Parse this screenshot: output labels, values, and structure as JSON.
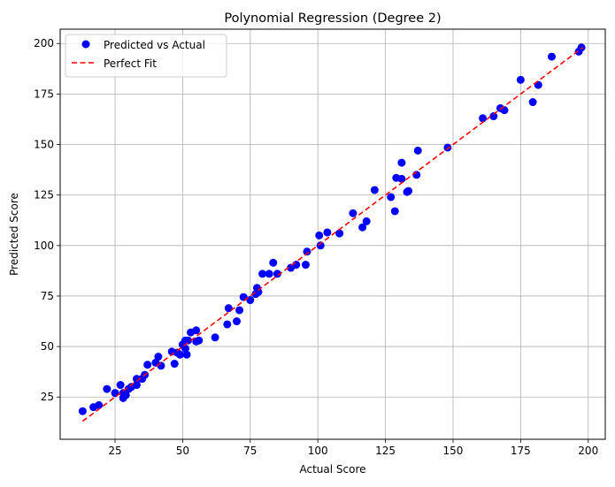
{
  "chart_data": {
    "type": "scatter",
    "title": "Polynomial Regression (Degree 2)",
    "xlabel": "Actual Score",
    "ylabel": "Predicted Score",
    "xlim": [
      4.7,
      206.3
    ],
    "ylim": [
      4.1,
      207.1
    ],
    "xticks": [
      25,
      50,
      75,
      100,
      125,
      150,
      175,
      200
    ],
    "yticks": [
      25,
      50,
      75,
      100,
      125,
      150,
      175,
      200
    ],
    "grid": true,
    "legend_position": "upper-left",
    "series": [
      {
        "name": "Predicted vs Actual",
        "kind": "scatter",
        "color": "#0000ff",
        "points": [
          [
            13,
            18
          ],
          [
            17,
            20
          ],
          [
            19,
            21
          ],
          [
            22,
            29
          ],
          [
            25,
            27
          ],
          [
            27,
            31
          ],
          [
            28,
            27
          ],
          [
            28,
            24.5
          ],
          [
            29,
            26
          ],
          [
            30,
            29
          ],
          [
            31,
            30
          ],
          [
            33,
            31
          ],
          [
            33,
            34
          ],
          [
            35,
            34
          ],
          [
            36,
            36
          ],
          [
            37,
            41
          ],
          [
            40,
            42
          ],
          [
            41,
            45
          ],
          [
            42,
            40.5
          ],
          [
            46,
            47.5
          ],
          [
            47,
            41.5
          ],
          [
            48,
            47
          ],
          [
            49,
            46
          ],
          [
            50,
            51
          ],
          [
            51,
            53
          ],
          [
            51,
            49
          ],
          [
            51.5,
            46
          ],
          [
            52,
            53
          ],
          [
            53,
            57
          ],
          [
            55,
            58
          ],
          [
            55,
            52.5
          ],
          [
            56,
            53
          ],
          [
            62,
            54.5
          ],
          [
            66.5,
            61
          ],
          [
            67,
            69
          ],
          [
            70,
            62.5
          ],
          [
            71,
            68
          ],
          [
            72.5,
            74.5
          ],
          [
            75,
            73
          ],
          [
            77,
            76
          ],
          [
            77.5,
            79
          ],
          [
            78,
            77
          ],
          [
            79.5,
            86
          ],
          [
            82,
            86
          ],
          [
            83.5,
            91.5
          ],
          [
            85,
            86
          ],
          [
            90,
            89
          ],
          [
            92,
            90.5
          ],
          [
            95.5,
            90.5
          ],
          [
            96,
            97
          ],
          [
            100.5,
            105
          ],
          [
            101,
            100
          ],
          [
            103.5,
            106.5
          ],
          [
            108,
            106
          ],
          [
            113,
            116
          ],
          [
            116.5,
            109
          ],
          [
            118,
            112
          ],
          [
            121,
            127.5
          ],
          [
            127,
            124
          ],
          [
            128.5,
            117
          ],
          [
            129,
            133.5
          ],
          [
            131,
            133
          ],
          [
            131,
            141
          ],
          [
            133,
            126.5
          ],
          [
            133.5,
            127
          ],
          [
            136.5,
            135
          ],
          [
            137,
            147
          ],
          [
            148,
            148.5
          ],
          [
            161,
            163
          ],
          [
            165,
            164
          ],
          [
            167.5,
            168
          ],
          [
            169,
            167
          ],
          [
            175,
            182
          ],
          [
            179.5,
            171
          ],
          [
            181.5,
            179.5
          ],
          [
            186.5,
            193.5
          ],
          [
            196.5,
            196
          ],
          [
            197.5,
            198
          ]
        ]
      },
      {
        "name": "Perfect Fit",
        "kind": "line",
        "style": "dashed",
        "color": "#ff0000",
        "points": [
          [
            13,
            13
          ],
          [
            198,
            198
          ]
        ]
      }
    ]
  }
}
